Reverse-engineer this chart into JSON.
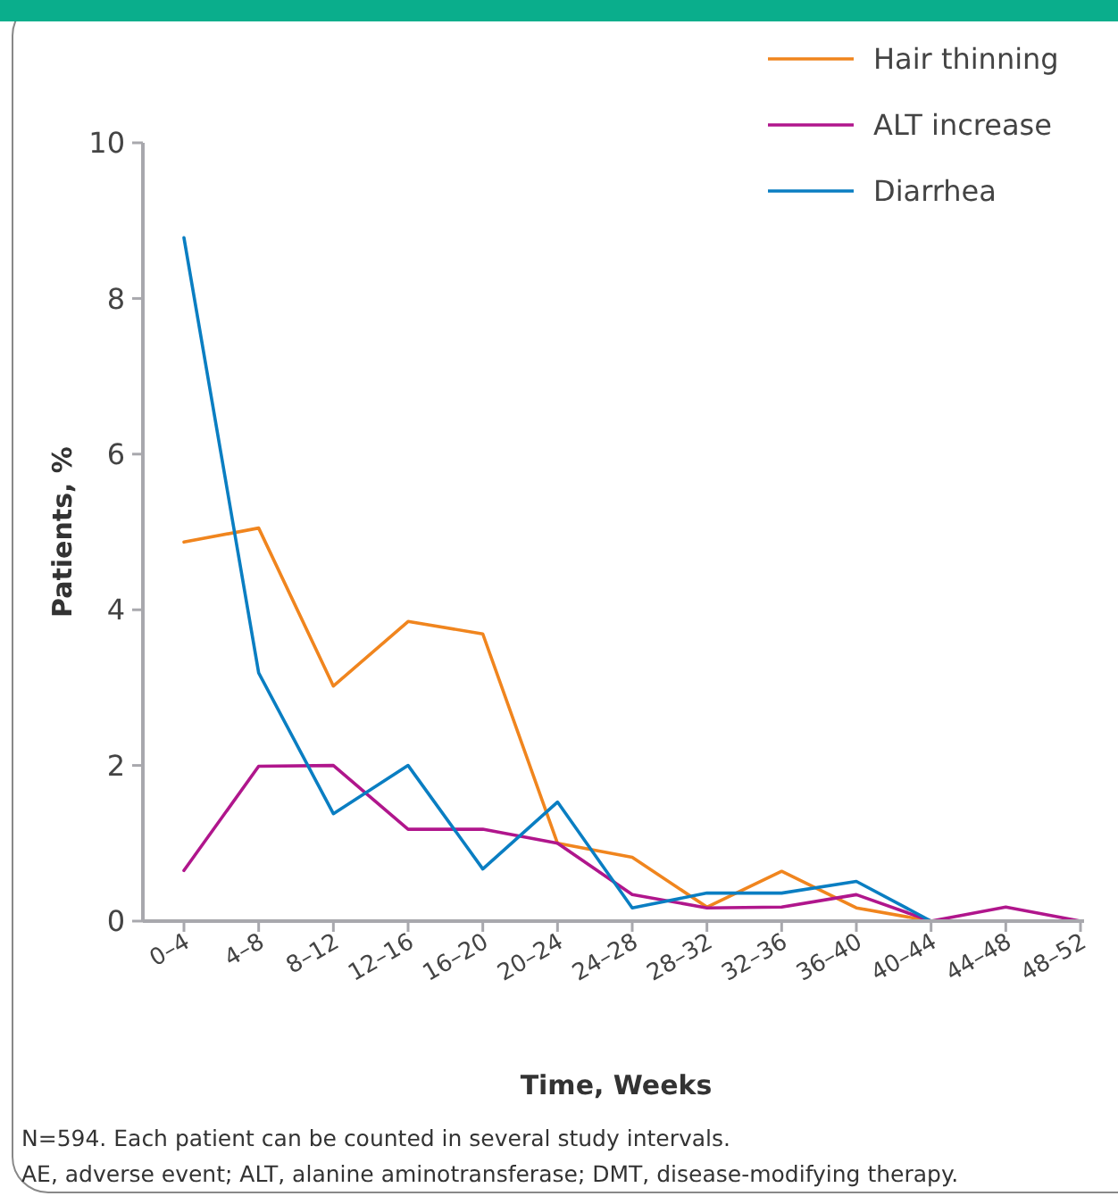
{
  "chart_data": {
    "type": "line",
    "xlabel": "Time, Weeks",
    "ylabel": "Patients, %",
    "categories": [
      "0–4",
      "4–8",
      "8–12",
      "12–16",
      "16–20",
      "20–24",
      "24–28",
      "28–32",
      "32–36",
      "36–40",
      "40–44",
      "44–48",
      "48–52"
    ],
    "series": [
      {
        "name": "Hair thinning",
        "color": "#f0851e",
        "values": [
          4.87,
          5.05,
          3.02,
          3.85,
          3.69,
          1.0,
          0.82,
          0.18,
          0.64,
          0.17,
          0,
          0,
          0
        ]
      },
      {
        "name": "ALT increase",
        "color": "#b0168c",
        "values": [
          0.65,
          1.99,
          2.0,
          1.18,
          1.18,
          1.0,
          0.34,
          0.17,
          0.18,
          0.34,
          0,
          0.18,
          0
        ]
      },
      {
        "name": "Diarrhea",
        "color": "#0a7ec2",
        "values": [
          8.78,
          3.19,
          1.38,
          2.0,
          0.67,
          1.53,
          0.17,
          0.36,
          0.36,
          0.51,
          0,
          0,
          0
        ]
      }
    ],
    "ylim": [
      0,
      10
    ],
    "yticks": [
      0,
      2,
      4,
      6,
      8,
      10
    ],
    "grid": false,
    "legend": "top right",
    "marker": "none",
    "line_style": "solid",
    "annotations": [
      "N=594. Each patient can be counted in several study intervals.",
      "AE, adverse event; ALT, alanine aminotransferase; DMT, disease-modifying therapy."
    ]
  }
}
